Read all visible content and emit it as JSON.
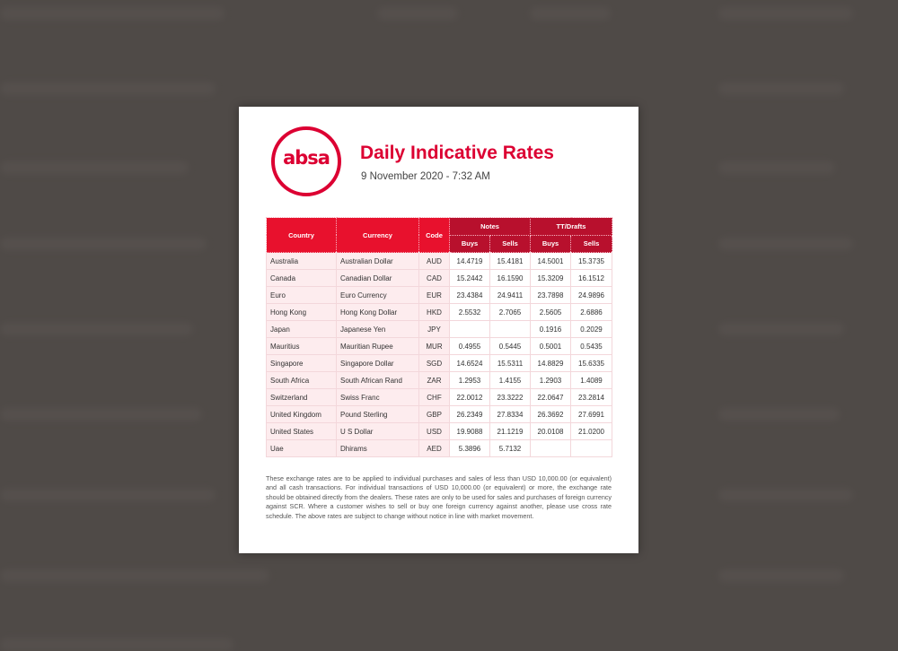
{
  "brand": {
    "logo_text": "absa",
    "accent_color": "#dc0032"
  },
  "header": {
    "title": "Daily Indicative Rates",
    "datetime": "9 November 2020 - 7:32 AM"
  },
  "table": {
    "headers": {
      "country": "Country",
      "currency": "Currency",
      "code": "Code",
      "notes": "Notes",
      "tt_drafts": "TT/Drafts",
      "buys": "Buys",
      "sells": "Sells"
    },
    "rows": [
      {
        "country": "Australia",
        "currency": "Australian Dollar",
        "code": "AUD",
        "notes_buys": "14.4719",
        "notes_sells": "15.4181",
        "tt_buys": "14.5001",
        "tt_sells": "15.3735"
      },
      {
        "country": "Canada",
        "currency": "Canadian Dollar",
        "code": "CAD",
        "notes_buys": "15.2442",
        "notes_sells": "16.1590",
        "tt_buys": "15.3209",
        "tt_sells": "16.1512"
      },
      {
        "country": "Euro",
        "currency": "Euro Currency",
        "code": "EUR",
        "notes_buys": "23.4384",
        "notes_sells": "24.9411",
        "tt_buys": "23.7898",
        "tt_sells": "24.9896"
      },
      {
        "country": "Hong Kong",
        "currency": "Hong Kong Dollar",
        "code": "HKD",
        "notes_buys": "2.5532",
        "notes_sells": "2.7065",
        "tt_buys": "2.5605",
        "tt_sells": "2.6886"
      },
      {
        "country": "Japan",
        "currency": "Japanese Yen",
        "code": "JPY",
        "notes_buys": "",
        "notes_sells": "",
        "tt_buys": "0.1916",
        "tt_sells": "0.2029"
      },
      {
        "country": "Mauritius",
        "currency": "Mauritian Rupee",
        "code": "MUR",
        "notes_buys": "0.4955",
        "notes_sells": "0.5445",
        "tt_buys": "0.5001",
        "tt_sells": "0.5435"
      },
      {
        "country": "Singapore",
        "currency": "Singapore Dollar",
        "code": "SGD",
        "notes_buys": "14.6524",
        "notes_sells": "15.5311",
        "tt_buys": "14.8829",
        "tt_sells": "15.6335"
      },
      {
        "country": "South Africa",
        "currency": "South African Rand",
        "code": "ZAR",
        "notes_buys": "1.2953",
        "notes_sells": "1.4155",
        "tt_buys": "1.2903",
        "tt_sells": "1.4089"
      },
      {
        "country": "Switzerland",
        "currency": "Swiss Franc",
        "code": "CHF",
        "notes_buys": "22.0012",
        "notes_sells": "23.3222",
        "tt_buys": "22.0647",
        "tt_sells": "23.2814"
      },
      {
        "country": "United Kingdom",
        "currency": "Pound Sterling",
        "code": "GBP",
        "notes_buys": "26.2349",
        "notes_sells": "27.8334",
        "tt_buys": "26.3692",
        "tt_sells": "27.6991"
      },
      {
        "country": "United States",
        "currency": "U S Dollar",
        "code": "USD",
        "notes_buys": "19.9088",
        "notes_sells": "21.1219",
        "tt_buys": "20.0108",
        "tt_sells": "21.0200"
      },
      {
        "country": "Uae",
        "currency": "Dhirams",
        "code": "AED",
        "notes_buys": "5.3896",
        "notes_sells": "5.7132",
        "tt_buys": "",
        "tt_sells": ""
      }
    ]
  },
  "footnote": "These exchange rates are to be applied to individual purchases and sales of less than USD 10,000.00 (or equivalent) and all cash transactions. For individual transactions of USD 10,000.00 (or equivalent) or more, the exchange rate should be obtained directly from the dealers. These rates are only to be used for sales and purchases of foreign currency against SCR. Where a customer wishes to sell or buy one foreign currency against another, please use cross rate schedule. The above rates are subject to change without notice in line with market movement."
}
